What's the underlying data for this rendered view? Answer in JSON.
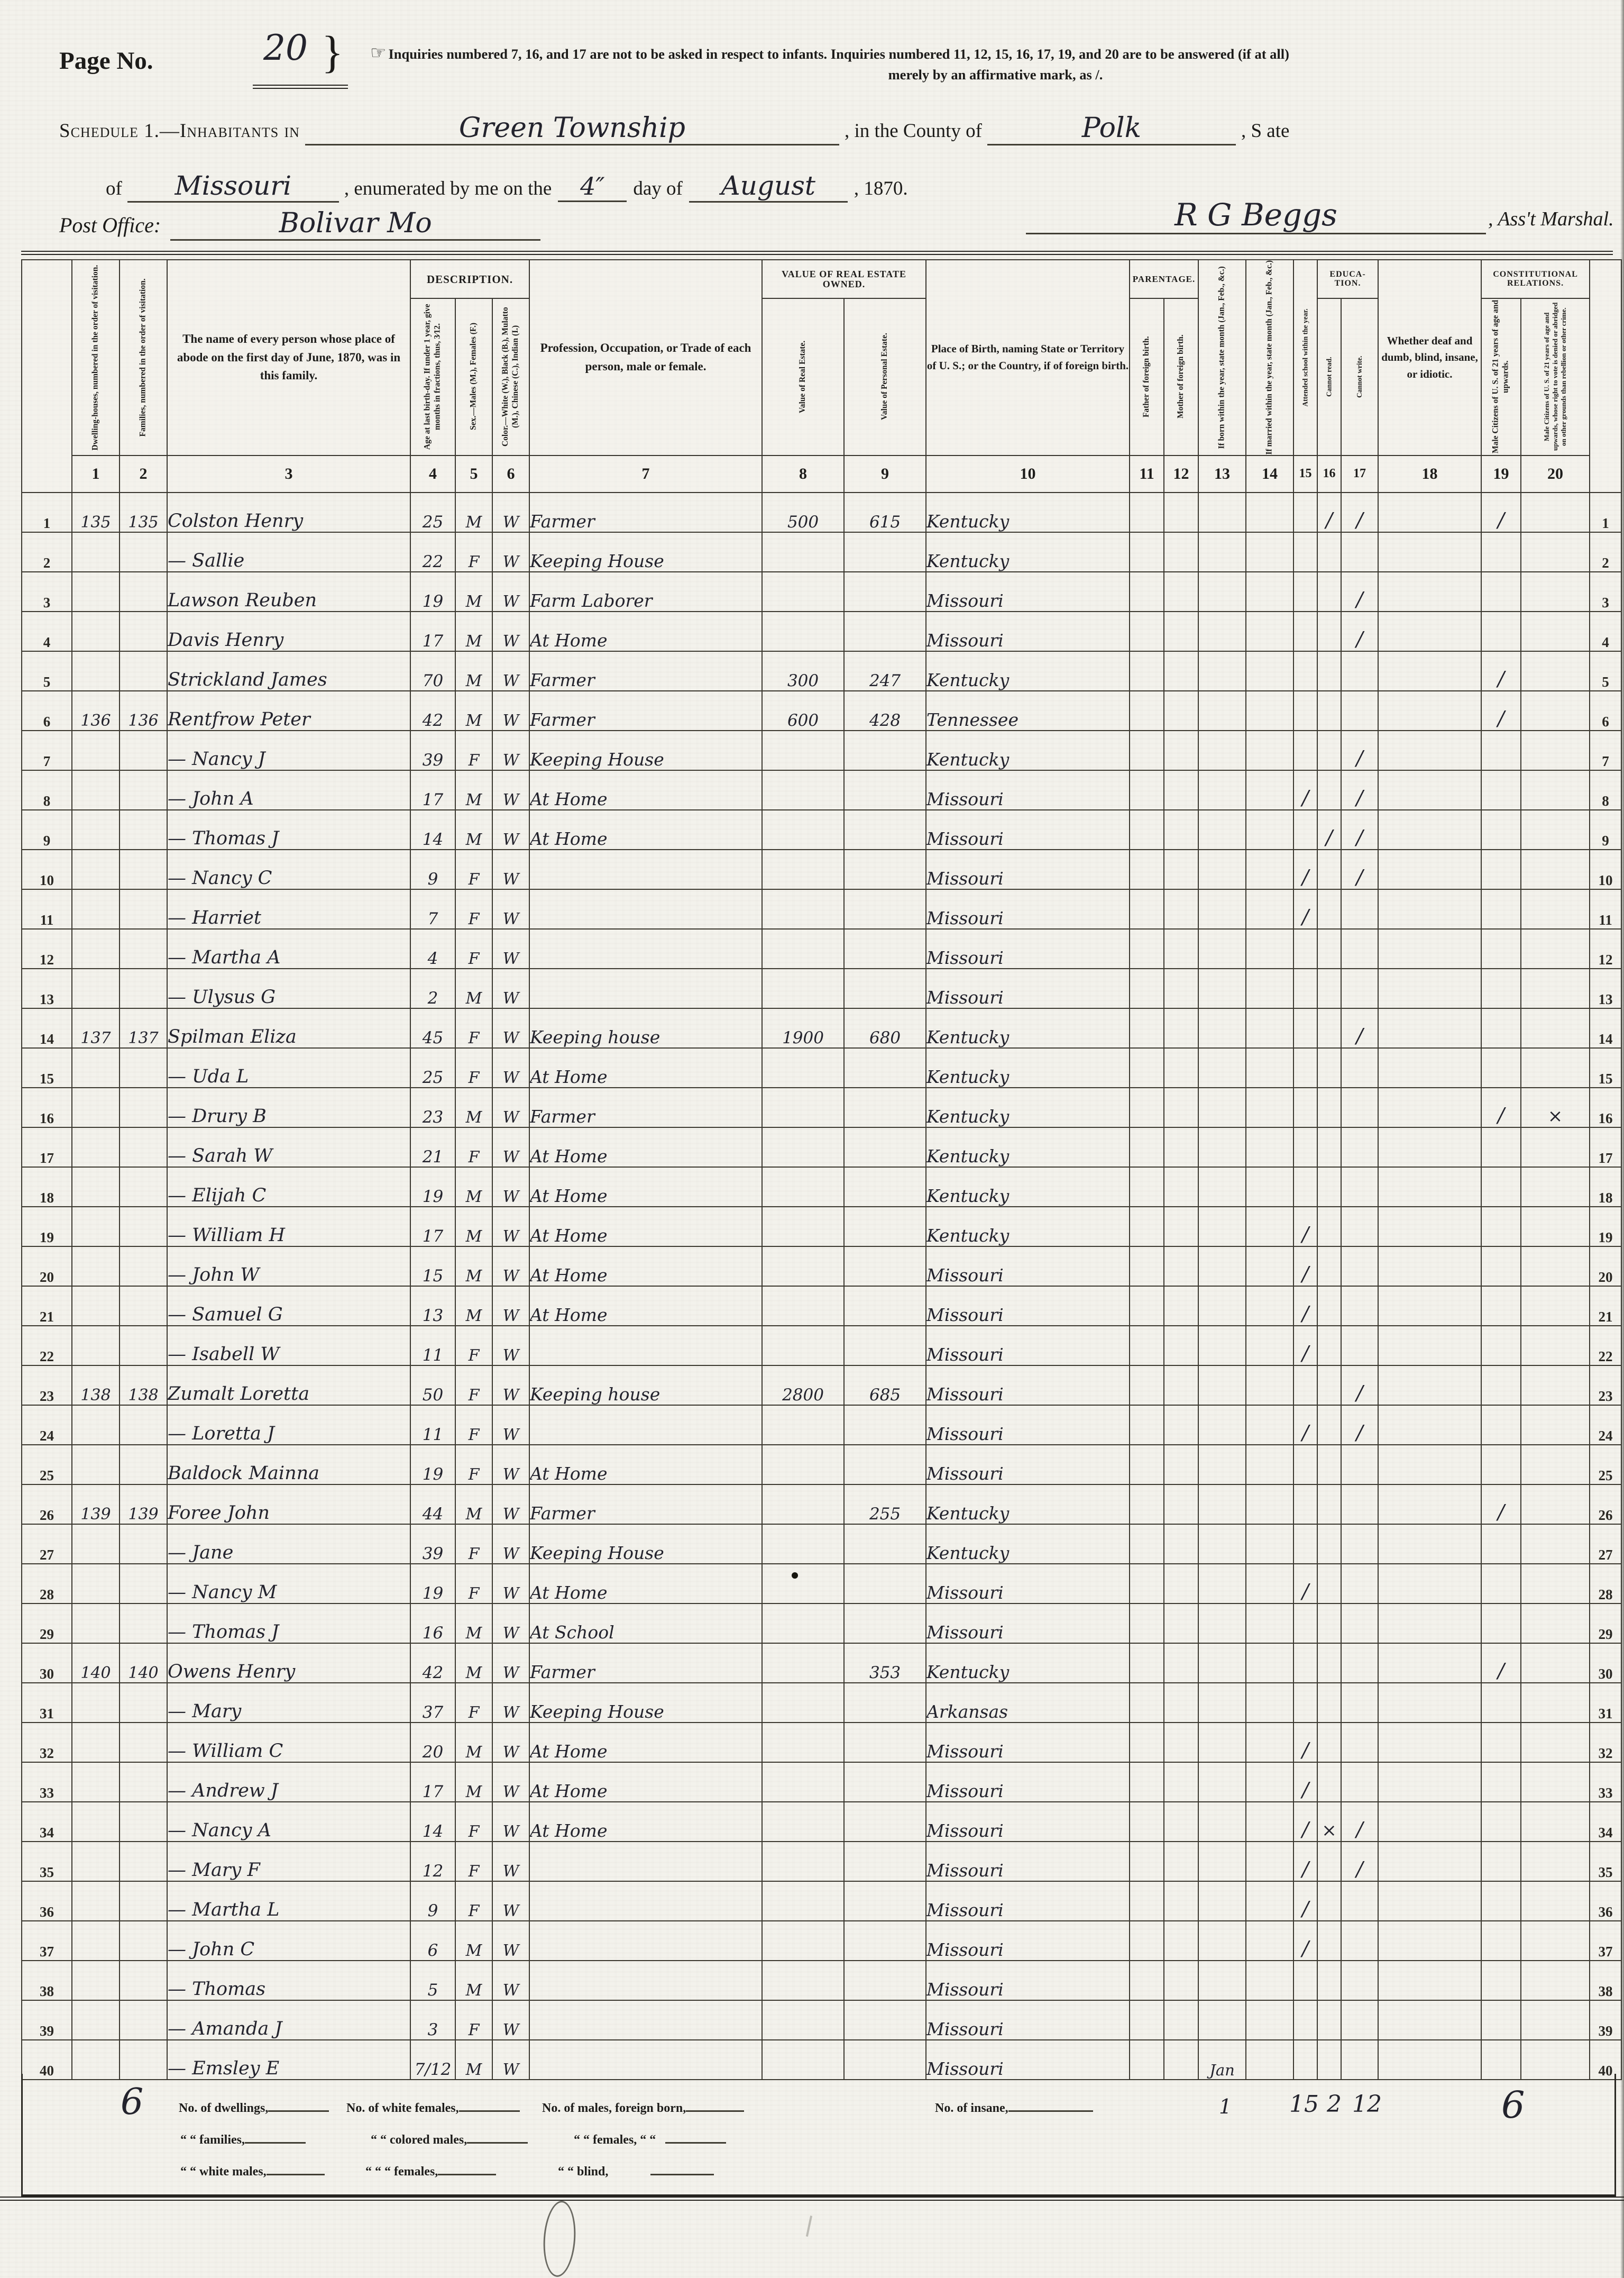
{
  "page": {
    "label": "Page No.",
    "number": "20",
    "brace": "}",
    "pointer_icon": "☞",
    "inquiry_line1": "Inquiries numbered 7, 16, and 17 are not to be asked in respect to infants.   Inquiries numbered 11, 12, 15, 16, 17, 19, and 20 are to be answered (if at all)",
    "inquiry_line2": "merely by an affirmative mark, as /."
  },
  "schedule": {
    "prefix": "Schedule 1.—Inhabitants in",
    "township": "Green Township",
    "mid_county": ", in the County of",
    "county": "Polk",
    "suffix_state": ", S ate",
    "line2_of": "of",
    "state": "Missouri",
    "line2_mid": ", enumerated by me on the",
    "day": "4″",
    "line2_dayof": "day of",
    "month": "August",
    "line2_year": ", 1870."
  },
  "post_office": {
    "label": "Post Office:",
    "value": "Bolivar Mo",
    "signature": "R G Beggs",
    "signature_suffix": ", Ass't Marshal."
  },
  "table": {
    "groups": {
      "description": "DESCRIPTION.",
      "value_owned": "VALUE OF REAL ESTATE OWNED.",
      "parentage": "PARENTAGE.",
      "education": "EDUCA-TION.",
      "constitutional": "CONSTITUTIONAL RELATIONS."
    },
    "columns": [
      {
        "num": "1",
        "title": "Dwelling-houses, numbered in the order of visitation."
      },
      {
        "num": "2",
        "title": "Families, numbered in the order of visitation."
      },
      {
        "num": "3",
        "title": "The name of every person whose place of abode on the first day of June, 1870, was in this family."
      },
      {
        "num": "4",
        "title": "Age at last birth-day. If under 1 year, give months in fractions, thus, 3⁄12."
      },
      {
        "num": "5",
        "title": "Sex.—Males (M.), Females (F.)"
      },
      {
        "num": "6",
        "title": "Color.—White (W.), Black (B.), Mulatto (M.), Chinese (C.), Indian (I.)"
      },
      {
        "num": "7",
        "title": "Profession, Occupation, or Trade of each person, male or female."
      },
      {
        "num": "8",
        "title": "Value of Real Estate."
      },
      {
        "num": "9",
        "title": "Value of Personal Estate."
      },
      {
        "num": "10",
        "title": "Place of Birth, naming State or Territory of U. S.; or the Country, if of foreign birth."
      },
      {
        "num": "11",
        "title": "Father of foreign birth."
      },
      {
        "num": "12",
        "title": "Mother of foreign birth."
      },
      {
        "num": "13",
        "title": "If born within the year, state month (Jan., Feb., &c.)"
      },
      {
        "num": "14",
        "title": "If married within the year, state month (Jan., Feb., &c.)"
      },
      {
        "num": "15",
        "title": "Attended school within the year."
      },
      {
        "num": "16",
        "title": "Cannot read."
      },
      {
        "num": "17",
        "title": "Cannot write."
      },
      {
        "num": "18",
        "title": "Whether deaf and dumb, blind, insane, or idiotic."
      },
      {
        "num": "19",
        "title": "Male Citizens of U. S. of 21 years of age and upwards."
      },
      {
        "num": "20",
        "title": "Male Citizens of U. S. of 21 years of age and upwards, whose right to vote is denied or abridged on other grounds than rebellion or other crime."
      }
    ],
    "rows": [
      {
        "n": "1",
        "dw": "135",
        "fam": "135",
        "name": "Colston Henry",
        "age": "25",
        "sex": "M",
        "color": "W",
        "occ": "Farmer",
        "real": "500",
        "pers": "615",
        "birth": "Kentucky",
        "marks": {
          "16": "/",
          "17": "/",
          "19": "/"
        }
      },
      {
        "n": "2",
        "name": "— Sallie",
        "age": "22",
        "sex": "F",
        "color": "W",
        "occ": "Keeping House",
        "birth": "Kentucky"
      },
      {
        "n": "3",
        "name": "Lawson Reuben",
        "age": "19",
        "sex": "M",
        "color": "W",
        "occ": "Farm Laborer",
        "birth": "Missouri",
        "marks": {
          "17": "/"
        }
      },
      {
        "n": "4",
        "name": "Davis Henry",
        "age": "17",
        "sex": "M",
        "color": "W",
        "occ": "At Home",
        "birth": "Missouri",
        "marks": {
          "17": "/"
        }
      },
      {
        "n": "5",
        "name": "Strickland James",
        "age": "70",
        "sex": "M",
        "color": "W",
        "occ": "Farmer",
        "real": "300",
        "pers": "247",
        "birth": "Kentucky",
        "marks": {
          "19": "/"
        }
      },
      {
        "n": "6",
        "dw": "136",
        "fam": "136",
        "name": "Rentfrow Peter",
        "age": "42",
        "sex": "M",
        "color": "W",
        "occ": "Farmer",
        "real": "600",
        "pers": "428",
        "birth": "Tennessee",
        "marks": {
          "19": "/"
        }
      },
      {
        "n": "7",
        "name": "— Nancy J",
        "age": "39",
        "sex": "F",
        "color": "W",
        "occ": "Keeping House",
        "birth": "Kentucky",
        "marks": {
          "17": "/"
        }
      },
      {
        "n": "8",
        "name": "— John A",
        "age": "17",
        "sex": "M",
        "color": "W",
        "occ": "At Home",
        "birth": "Missouri",
        "marks": {
          "15": "/",
          "17": "/"
        }
      },
      {
        "n": "9",
        "name": "— Thomas J",
        "age": "14",
        "sex": "M",
        "color": "W",
        "occ": "At Home",
        "birth": "Missouri",
        "marks": {
          "16": "/",
          "17": "/"
        }
      },
      {
        "n": "10",
        "name": "— Nancy C",
        "age": "9",
        "sex": "F",
        "color": "W",
        "birth": "Missouri",
        "marks": {
          "15": "/",
          "17": "/"
        }
      },
      {
        "n": "11",
        "name": "— Harriet",
        "age": "7",
        "sex": "F",
        "color": "W",
        "birth": "Missouri",
        "marks": {
          "15": "/"
        }
      },
      {
        "n": "12",
        "name": "— Martha A",
        "age": "4",
        "sex": "F",
        "color": "W",
        "birth": "Missouri"
      },
      {
        "n": "13",
        "name": "— Ulysus G",
        "age": "2",
        "sex": "M",
        "color": "W",
        "birth": "Missouri"
      },
      {
        "n": "14",
        "dw": "137",
        "fam": "137",
        "name": "Spilman Eliza",
        "age": "45",
        "sex": "F",
        "color": "W",
        "occ": "Keeping house",
        "real": "1900",
        "pers": "680",
        "birth": "Kentucky",
        "marks": {
          "17": "/"
        }
      },
      {
        "n": "15",
        "name": "— Uda L",
        "age": "25",
        "sex": "F",
        "color": "W",
        "occ": "At Home",
        "birth": "Kentucky"
      },
      {
        "n": "16",
        "name": "— Drury B",
        "age": "23",
        "sex": "M",
        "color": "W",
        "occ": "Farmer",
        "birth": "Kentucky",
        "marks": {
          "19": "/",
          "20": "x"
        }
      },
      {
        "n": "17",
        "name": "— Sarah W",
        "age": "21",
        "sex": "F",
        "color": "W",
        "occ": "At Home",
        "birth": "Kentucky"
      },
      {
        "n": "18",
        "name": "— Elijah C",
        "age": "19",
        "sex": "M",
        "color": "W",
        "occ": "At Home",
        "birth": "Kentucky"
      },
      {
        "n": "19",
        "name": "— William H",
        "age": "17",
        "sex": "M",
        "color": "W",
        "occ": "At Home",
        "birth": "Kentucky",
        "marks": {
          "15": "/"
        }
      },
      {
        "n": "20",
        "name": "— John W",
        "age": "15",
        "sex": "M",
        "color": "W",
        "occ": "At Home",
        "birth": "Missouri",
        "marks": {
          "15": "/"
        }
      },
      {
        "n": "21",
        "name": "— Samuel G",
        "age": "13",
        "sex": "M",
        "color": "W",
        "occ": "At Home",
        "birth": "Missouri",
        "marks": {
          "15": "/"
        }
      },
      {
        "n": "22",
        "name": "— Isabell W",
        "age": "11",
        "sex": "F",
        "color": "W",
        "birth": "Missouri",
        "marks": {
          "15": "/"
        }
      },
      {
        "n": "23",
        "dw": "138",
        "fam": "138",
        "name": "Zumalt Loretta",
        "age": "50",
        "sex": "F",
        "color": "W",
        "occ": "Keeping house",
        "real": "2800",
        "pers": "685",
        "birth": "Missouri",
        "marks": {
          "17": "/"
        }
      },
      {
        "n": "24",
        "name": "— Loretta J",
        "age": "11",
        "sex": "F",
        "color": "W",
        "birth": "Missouri",
        "marks": {
          "15": "/",
          "17": "/"
        }
      },
      {
        "n": "25",
        "name": "Baldock Mainna",
        "age": "19",
        "sex": "F",
        "color": "W",
        "occ": "At Home",
        "birth": "Missouri"
      },
      {
        "n": "26",
        "dw": "139",
        "fam": "139",
        "name": "Foree John",
        "age": "44",
        "sex": "M",
        "color": "W",
        "occ": "Farmer",
        "pers": "255",
        "birth": "Kentucky",
        "marks": {
          "19": "/"
        }
      },
      {
        "n": "27",
        "name": "— Jane",
        "age": "39",
        "sex": "F",
        "color": "W",
        "occ": "Keeping House",
        "birth": "Kentucky"
      },
      {
        "n": "28",
        "name": "— Nancy M",
        "age": "19",
        "sex": "F",
        "color": "W",
        "occ": "At Home",
        "birth": "Missouri",
        "marks": {
          "15": "/"
        }
      },
      {
        "n": "29",
        "name": "— Thomas J",
        "age": "16",
        "sex": "M",
        "color": "W",
        "occ": "At School",
        "birth": "Missouri"
      },
      {
        "n": "30",
        "dw": "140",
        "fam": "140",
        "name": "Owens Henry",
        "age": "42",
        "sex": "M",
        "color": "W",
        "occ": "Farmer",
        "pers": "353",
        "birth": "Kentucky",
        "marks": {
          "19": "/"
        }
      },
      {
        "n": "31",
        "name": "— Mary",
        "age": "37",
        "sex": "F",
        "color": "W",
        "occ": "Keeping House",
        "birth": "Arkansas"
      },
      {
        "n": "32",
        "name": "— William C",
        "age": "20",
        "sex": "M",
        "color": "W",
        "occ": "At Home",
        "birth": "Missouri",
        "marks": {
          "15": "/"
        }
      },
      {
        "n": "33",
        "name": "— Andrew J",
        "age": "17",
        "sex": "M",
        "color": "W",
        "occ": "At Home",
        "birth": "Missouri",
        "marks": {
          "15": "/"
        }
      },
      {
        "n": "34",
        "name": "— Nancy A",
        "age": "14",
        "sex": "F",
        "color": "W",
        "occ": "At Home",
        "birth": "Missouri",
        "marks": {
          "15": "/",
          "16": "x",
          "17": "/"
        }
      },
      {
        "n": "35",
        "name": "— Mary F",
        "age": "12",
        "sex": "F",
        "color": "W",
        "birth": "Missouri",
        "marks": {
          "15": "/",
          "17": "/"
        }
      },
      {
        "n": "36",
        "name": "— Martha L",
        "age": "9",
        "sex": "F",
        "color": "W",
        "birth": "Missouri",
        "marks": {
          "15": "/"
        }
      },
      {
        "n": "37",
        "name": "— John C",
        "age": "6",
        "sex": "M",
        "color": "W",
        "birth": "Missouri",
        "marks": {
          "15": "/"
        }
      },
      {
        "n": "38",
        "name": "— Thomas",
        "age": "5",
        "sex": "M",
        "color": "W",
        "birth": "Missouri"
      },
      {
        "n": "39",
        "name": "— Amanda J",
        "age": "3",
        "sex": "F",
        "color": "W",
        "birth": "Missouri"
      },
      {
        "n": "40",
        "name": "— Emsley E",
        "age": "7/12",
        "sex": "M",
        "color": "W",
        "birth": "Missouri",
        "marks": {
          "13": "Jan"
        }
      }
    ]
  },
  "footer": {
    "big_count": "6",
    "l1a": "No. of dwellings,",
    "l1b": "No. of white females,",
    "l1c": "No. of males, foreign born,",
    "insane_label": "No. of insane,",
    "l2a": "“  “  families,",
    "l2b": "“  “  colored males,",
    "l2c": "“  “  females,   “   “",
    "l3a": "“  “  white males,",
    "l3b": "“  “   “   females,",
    "l3c": "“  “  blind,",
    "totals": {
      "born_month_total": "1",
      "attended_school_total": "15",
      "cannot_read_total": "2",
      "cannot_write_total": "12",
      "male_citizens_total": "6"
    }
  }
}
